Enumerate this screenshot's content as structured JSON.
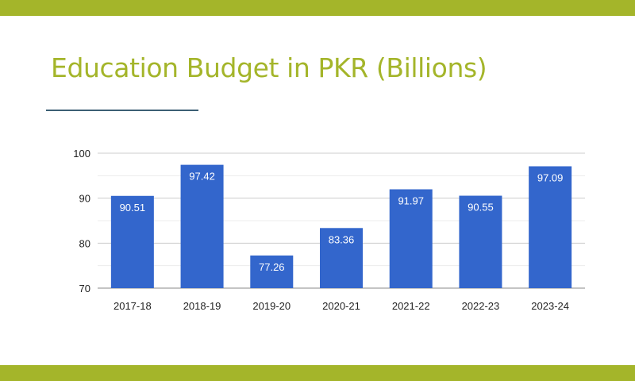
{
  "slide": {
    "title": "Education Budget in PKR (Billions)"
  },
  "colors": {
    "accent_band": "#a4b52a",
    "title": "#a4b52a",
    "rule": "#3c5f74",
    "bar": "#3366cc",
    "bar_label": "#ffffff",
    "gridline": "#cccccc",
    "axis_text": "#222222"
  },
  "chart_data": {
    "type": "bar",
    "categories": [
      "2017-18",
      "2018-19",
      "2019-20",
      "2020-21",
      "2021-22",
      "2022-23",
      "2023-24"
    ],
    "values": [
      90.51,
      97.42,
      77.26,
      83.36,
      91.97,
      90.55,
      97.09
    ],
    "data_labels": [
      "90.51",
      "97.42",
      "77.26",
      "83.36",
      "91.97",
      "90.55",
      "97.09"
    ],
    "yticks": [
      70,
      80,
      90,
      100
    ],
    "ytick_labels": [
      "70",
      "80",
      "90",
      "100"
    ],
    "ylim": [
      70,
      100
    ],
    "grid": true,
    "legend": "none"
  }
}
